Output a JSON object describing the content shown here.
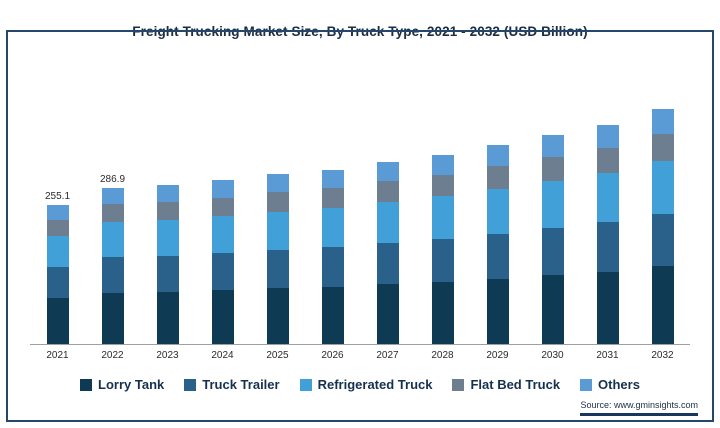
{
  "title": "Freight Trucking Market Size, By Truck Type, 2021 - 2032 (USD Billion)",
  "source": "Source: www.gminsights.com",
  "colors": {
    "lorry_tank": "#0e3a53",
    "truck_trailer": "#29618a",
    "refrigerated_truck": "#41a0d8",
    "flat_bed_truck": "#6d7e90",
    "others": "#5b9bd5",
    "frame_border": "#24476b",
    "axis_line": "#9aa0a6",
    "text_dark": "#16314f"
  },
  "legend": {
    "items": [
      {
        "key": "lorry_tank",
        "label": "Lorry Tank"
      },
      {
        "key": "truck_trailer",
        "label": "Truck Trailer"
      },
      {
        "key": "refrigerated_truck",
        "label": "Refrigerated Truck"
      },
      {
        "key": "flat_bed_truck",
        "label": "Flat Bed Truck"
      },
      {
        "key": "others",
        "label": "Others"
      }
    ]
  },
  "chart_data": {
    "type": "bar",
    "stacked": true,
    "title": "Freight Trucking Market Size, By Truck Type, 2021 - 2032 (USD Billion)",
    "xlabel": "",
    "ylabel": "USD Billion",
    "ylim": [
      0,
      460
    ],
    "grid": false,
    "legend_position": "bottom",
    "categories": [
      "2021",
      "2022",
      "2023",
      "2024",
      "2025",
      "2026",
      "2027",
      "2028",
      "2029",
      "2030",
      "2031",
      "2032"
    ],
    "totals": [
      255.1,
      286.9,
      292.4,
      300.8,
      312.5,
      320.7,
      334.2,
      348.6,
      365.3,
      383.8,
      403.9,
      432.6
    ],
    "bar_labels": [
      "255.1",
      "286.9",
      "",
      "",
      "",
      "",
      "",
      "",
      "",
      "",
      "",
      ""
    ],
    "series": [
      {
        "key": "lorry_tank",
        "name": "Lorry Tank",
        "values": [
          84.2,
          94.7,
          96.5,
          99.3,
          103.1,
          105.8,
          110.3,
          115.0,
          120.5,
          126.7,
          133.3,
          142.8
        ]
      },
      {
        "key": "truck_trailer",
        "name": "Truck Trailer",
        "values": [
          57.4,
          64.6,
          65.8,
          67.7,
          70.3,
          72.2,
          75.2,
          78.4,
          82.2,
          86.4,
          90.9,
          97.3
        ]
      },
      {
        "key": "refrigerated_truck",
        "name": "Refrigerated Truck",
        "values": [
          57.4,
          64.6,
          65.8,
          67.7,
          70.3,
          72.2,
          75.2,
          78.4,
          82.2,
          86.4,
          90.9,
          97.3
        ]
      },
      {
        "key": "flat_bed_truck",
        "name": "Flat Bed Truck",
        "values": [
          29.3,
          33.0,
          33.6,
          34.6,
          35.9,
          36.9,
          38.4,
          40.1,
          42.0,
          44.1,
          46.4,
          49.7
        ]
      },
      {
        "key": "others",
        "name": "Others",
        "values": [
          26.8,
          30.1,
          30.7,
          31.6,
          32.8,
          33.7,
          35.1,
          36.6,
          38.4,
          40.3,
          42.4,
          45.4
        ]
      }
    ]
  }
}
